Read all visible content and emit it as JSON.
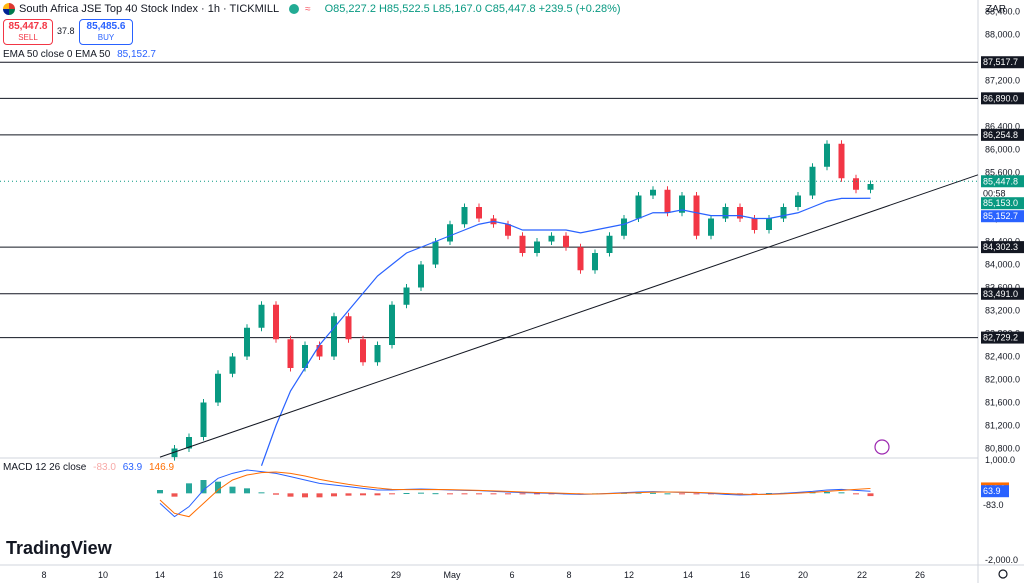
{
  "header": {
    "title": "South Africa JSE Top 40 Stock Index · 1h · TICKMILL",
    "wave_icon": "≈",
    "ohlc": "O85,227.2 H85,522.5 L85,167.0 C85,447.8 +239.5 (+0.28%)"
  },
  "trade": {
    "sell_price": "85,447.8",
    "sell_label": "SELL",
    "spread": "37.8",
    "buy_price": "85,485.6",
    "buy_label": "BUY"
  },
  "indicators": {
    "ema_label": "EMA 50 close 0 EMA 50",
    "ema_value": "85,152.7",
    "macd_label": "MACD 12 26 close",
    "macd_hist": "-83.0",
    "macd_line": "63.9",
    "macd_signal": "146.9"
  },
  "currency": "ZAR",
  "logo_text": "TradingView",
  "colors": {
    "up": "#089981",
    "down": "#f23645",
    "ema": "#2962ff",
    "macd": "#2962ff",
    "signal": "#ff6d00",
    "support_line": "#131722"
  },
  "chart_data": {
    "type": "candlestick",
    "ylim": [
      80600,
      88600
    ],
    "y_ticks": [
      "88,400.0",
      "88,000.0",
      "87,200.0",
      "86,400.0",
      "86,000.0",
      "85,600.0",
      "84,800.0",
      "84,400.0",
      "84,000.0",
      "83,600.0",
      "83,200.0",
      "82,800.0",
      "82,400.0",
      "82,000.0",
      "81,600.0",
      "81,200.0",
      "80,800.0"
    ],
    "x_ticks": [
      "8",
      "10",
      "14",
      "16",
      "22",
      "24",
      "29",
      "May",
      "6",
      "8",
      "12",
      "14",
      "16",
      "20",
      "22",
      "26"
    ],
    "horizontal_levels": [
      "87,517.7",
      "86,890.0",
      "86,254.8",
      "84,302.3",
      "83,491.0",
      "82,729.2"
    ],
    "price_labels": {
      "last": "85,447.8",
      "countdown": "00:58",
      "bid": "85,153.0",
      "ema": "85,152.7"
    },
    "price_path": [
      80650,
      80800,
      81000,
      81600,
      82100,
      82400,
      82900,
      83300,
      82700,
      82200,
      82600,
      82400,
      83100,
      82700,
      82300,
      82600,
      83300,
      83600,
      84000,
      84400,
      84700,
      85000,
      84800,
      84700,
      84500,
      84200,
      84400,
      84500,
      84300,
      83900,
      84200,
      84500,
      84800,
      85200,
      85300,
      84900,
      85200,
      84500,
      84800,
      85000,
      84800,
      84600,
      84800,
      85000,
      85200,
      85700,
      86100,
      85500,
      85300,
      85400
    ],
    "ema_path": [
      null,
      null,
      null,
      null,
      null,
      null,
      null,
      80500,
      81200,
      81800,
      82200,
      82600,
      82900,
      83200,
      83500,
      83800,
      84000,
      84200,
      84300,
      84400,
      84500,
      84600,
      84700,
      84750,
      84700,
      84600,
      84600,
      84600,
      84600,
      84550,
      84600,
      84650,
      84700,
      84800,
      84900,
      84900,
      84950,
      84900,
      84850,
      84850,
      84850,
      84800,
      84800,
      84850,
      84900,
      85000,
      85100,
      85150,
      85150,
      85152.7
    ],
    "macd": {
      "ylim": [
        -2000,
        1000
      ],
      "y_ticks": [
        "1,000.0",
        "-2,000.0"
      ],
      "macd_line": [
        -300,
        -700,
        -400,
        100,
        450,
        600,
        700,
        650,
        600,
        500,
        400,
        300,
        250,
        200,
        150,
        100,
        100,
        120,
        130,
        120,
        100,
        90,
        80,
        60,
        40,
        20,
        10,
        0,
        -20,
        -30,
        -20,
        0,
        20,
        40,
        50,
        40,
        30,
        20,
        0,
        -30,
        -50,
        -40,
        -20,
        0,
        30,
        60,
        100,
        120,
        90,
        63.9
      ],
      "signal_line": [
        -200,
        -600,
        -700,
        -300,
        100,
        400,
        550,
        620,
        640,
        600,
        520,
        420,
        340,
        270,
        210,
        160,
        120,
        110,
        110,
        115,
        110,
        100,
        90,
        75,
        60,
        40,
        25,
        15,
        0,
        -15,
        -20,
        -10,
        5,
        20,
        35,
        40,
        38,
        30,
        15,
        -5,
        -25,
        -35,
        -30,
        -15,
        5,
        30,
        60,
        90,
        120,
        146.9
      ],
      "histogram": [
        100,
        -100,
        300,
        400,
        350,
        200,
        150,
        30,
        -40,
        -100,
        -120,
        -120,
        -90,
        -70,
        -60,
        -60,
        -20,
        10,
        20,
        5,
        -10,
        -10,
        -10,
        -15,
        -20,
        -20,
        -15,
        -15,
        -20,
        -15,
        0,
        10,
        15,
        20,
        15,
        0,
        -8,
        -10,
        -15,
        -25,
        -25,
        -5,
        10,
        15,
        25,
        30,
        40,
        30,
        -30,
        -83.0
      ]
    }
  }
}
